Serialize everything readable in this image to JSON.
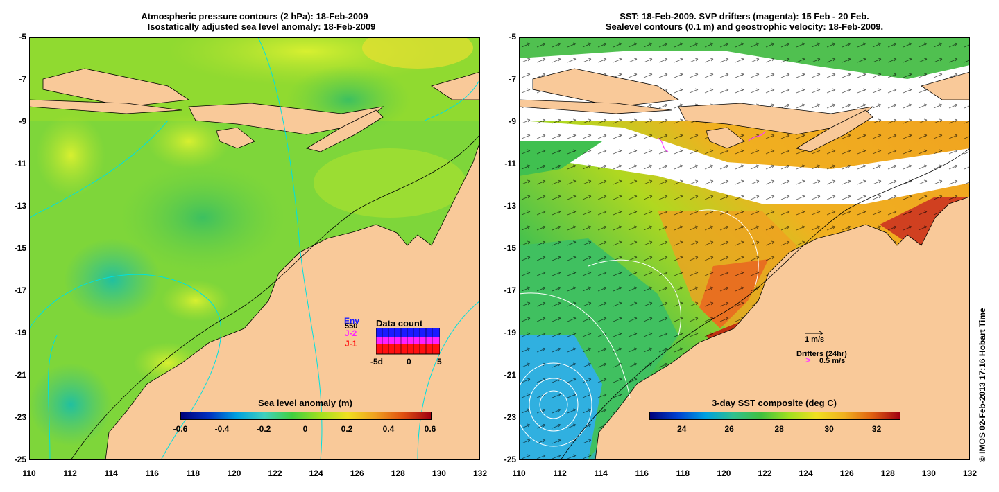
{
  "left_panel": {
    "title_line1": "Atmospheric pressure contours (2 hPa): 18-Feb-2009",
    "title_line2": "Isostatically adjusted sea level anomaly: 18-Feb-2009",
    "colorbar_label": "Sea level anomaly (m)",
    "colorbar_ticks": [
      "-0.6",
      "-0.4",
      "-0.2",
      "0",
      "0.2",
      "0.4",
      "0.6"
    ],
    "inset": {
      "title": "Data count",
      "legend": [
        {
          "label": "Env",
          "color": "#1a1aff"
        },
        {
          "label": "J-2",
          "color": "#ff20ff"
        },
        {
          "label": "J-1",
          "color": "#ff1010"
        }
      ],
      "overlay_label": "550",
      "x_ticks": [
        "-5d",
        "0",
        "5"
      ]
    }
  },
  "right_panel": {
    "title_line1": "SST: 18-Feb-2009. SVP drifters (magenta): 15 Feb - 20 Feb.",
    "title_line2": "Sealevel contours (0.1 m) and geostrophic velocity: 18-Feb-2009.",
    "colorbar_label": "3-day SST composite (deg C)",
    "colorbar_ticks": [
      "24",
      "26",
      "28",
      "30",
      "32"
    ],
    "velocity_scale": "1 m/s",
    "drifters_label": "Drifters (24hr)",
    "drifters_scale": "0.5 m/s",
    "drifter_color": "#ff40ff"
  },
  "axes": {
    "y_ticks": [
      "-5",
      "-7",
      "-9",
      "-11",
      "-13",
      "-15",
      "-17",
      "-19",
      "-21",
      "-23",
      "-25"
    ],
    "x_ticks": [
      "110",
      "112",
      "114",
      "116",
      "118",
      "120",
      "122",
      "124",
      "126",
      "128",
      "130",
      "132"
    ]
  },
  "copyright": "© IMOS 02-Feb-2013 17:16 Hobart Time",
  "colors": {
    "land": "#f9c999",
    "ocean_green": "#8ed82e",
    "sst_orange": "#f0a020",
    "contour_cyan": "#00e0e0"
  }
}
